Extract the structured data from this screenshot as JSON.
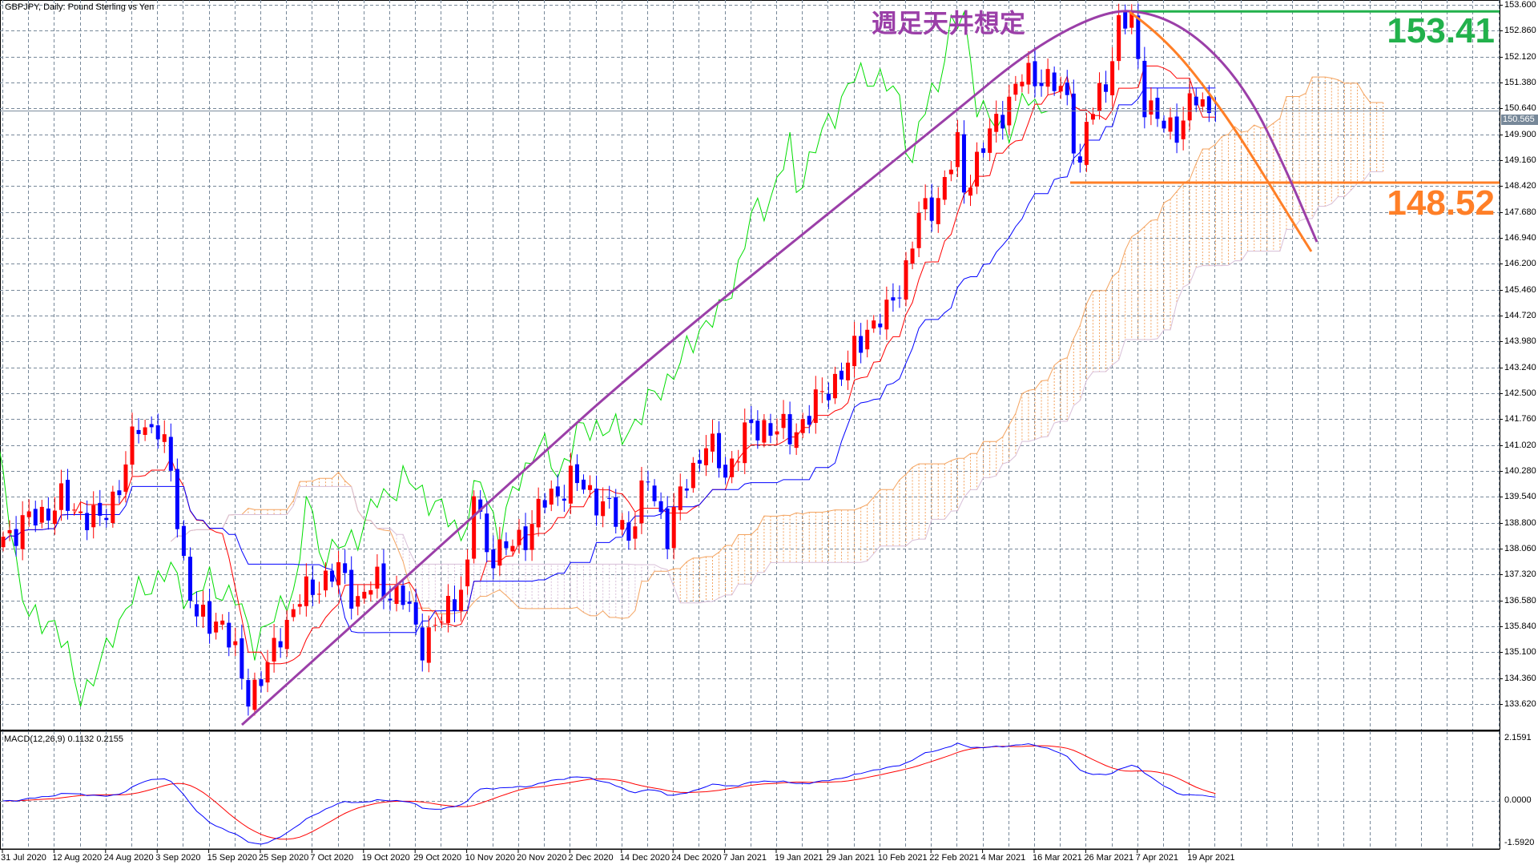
{
  "header": {
    "title": "GBPJPY, Daily:  Pound Sterling vs Yen",
    "macd_title": "MACD(12,26,9) 0.1132 0.2155"
  },
  "annotations": {
    "jp_text": "週足天井想定",
    "resistance": "153.41",
    "support": "148.52",
    "resistance_value": 153.41,
    "support_value": 148.52,
    "current_price": "150.565",
    "current_price_value": 150.565
  },
  "colors": {
    "bull": "#ff0000",
    "bear": "#0000ff",
    "tenkan": "#ff0000",
    "kijun": "#0000ff",
    "chikou": "#00dd00",
    "cloud": "#f4a460",
    "cloud_alt": "#d8bfd8",
    "arc": "#9b3fa8",
    "orange": "#ff7f27",
    "green": "#22b14c",
    "grid": "#778899"
  },
  "chart_data": {
    "type": "candlestick",
    "title": "GBPJPY, Daily",
    "ylim": [
      133.2,
      153.75
    ],
    "price_ticks": [
      "153.600",
      "152.860",
      "152.120",
      "151.380",
      "150.640",
      "149.900",
      "149.160",
      "148.420",
      "147.680",
      "146.940",
      "146.200",
      "145.460",
      "144.720",
      "143.980",
      "143.240",
      "142.500",
      "141.760",
      "141.020",
      "140.280",
      "139.540",
      "138.800",
      "138.060",
      "137.320",
      "136.580",
      "135.840",
      "135.100",
      "134.360",
      "133.620"
    ],
    "date_labels": [
      "31 Jul 2020",
      "12 Aug 2020",
      "24 Aug 2020",
      "3 Sep 2020",
      "15 Sep 2020",
      "25 Sep 2020",
      "7 Oct 2020",
      "19 Oct 2020",
      "29 Oct 2020",
      "10 Nov 2020",
      "20 Nov 2020",
      "2 Dec 2020",
      "14 Dec 2020",
      "24 Dec 2020",
      "7 Jan 2021",
      "19 Jan 2021",
      "29 Jan 2021",
      "10 Feb 2021",
      "22 Feb 2021",
      "4 Mar 2021",
      "16 Mar 2021",
      "26 Mar 2021",
      "7 Apr 2021",
      "19 Apr 2021"
    ],
    "close_keypoints": [
      [
        0,
        138.4
      ],
      [
        9,
        139.4
      ],
      [
        15,
        138.8
      ],
      [
        18,
        139.9
      ],
      [
        21,
        141.6
      ],
      [
        24,
        141.5
      ],
      [
        26,
        140.2
      ],
      [
        28,
        137.7
      ],
      [
        30,
        136.0
      ],
      [
        34,
        136.0
      ],
      [
        36,
        134.9
      ],
      [
        38,
        133.9
      ],
      [
        41,
        134.6
      ],
      [
        43,
        135.7
      ],
      [
        46,
        136.6
      ],
      [
        49,
        137.1
      ],
      [
        52,
        137.4
      ],
      [
        55,
        136.6
      ],
      [
        58,
        137.1
      ],
      [
        62,
        136.6
      ],
      [
        65,
        135.4
      ],
      [
        68,
        136.0
      ],
      [
        72,
        137.4
      ],
      [
        73,
        139.7
      ],
      [
        75,
        138.0
      ],
      [
        78,
        138.0
      ],
      [
        81,
        138.5
      ],
      [
        84,
        139.4
      ],
      [
        88,
        140.0
      ],
      [
        91,
        139.7
      ],
      [
        94,
        139.1
      ],
      [
        97,
        138.5
      ],
      [
        100,
        140.0
      ],
      [
        103,
        138.5
      ],
      [
        106,
        140.0
      ],
      [
        109,
        141.1
      ],
      [
        112,
        140.2
      ],
      [
        115,
        141.3
      ],
      [
        118,
        141.6
      ],
      [
        122,
        141.3
      ],
      [
        125,
        141.9
      ],
      [
        128,
        142.7
      ],
      [
        131,
        143.3
      ],
      [
        134,
        144.4
      ],
      [
        137,
        144.7
      ],
      [
        140,
        146.1
      ],
      [
        142,
        147.5
      ],
      [
        145,
        148.1
      ],
      [
        148,
        149.5
      ],
      [
        149,
        148.4
      ],
      [
        152,
        149.5
      ],
      [
        155,
        150.6
      ],
      [
        158,
        151.5
      ],
      [
        161,
        151.6
      ],
      [
        165,
        150.9
      ],
      [
        167,
        148.9
      ],
      [
        168,
        150.1
      ],
      [
        171,
        151.5
      ],
      [
        173,
        152.9
      ],
      [
        175,
        153.2
      ],
      [
        177,
        150.9
      ],
      [
        179,
        150.2
      ],
      [
        182,
        150.1
      ],
      [
        185,
        150.9
      ],
      [
        187,
        150.6
      ],
      [
        188,
        150.565
      ]
    ],
    "macd_ticks": [
      "2.1591",
      "0.0000",
      "-1.5920"
    ],
    "macd_ylim": [
      -1.592,
      2.1591
    ],
    "indicators": [
      "Ichimoku(9,26,52)",
      "MACD(12,26,9)"
    ]
  }
}
